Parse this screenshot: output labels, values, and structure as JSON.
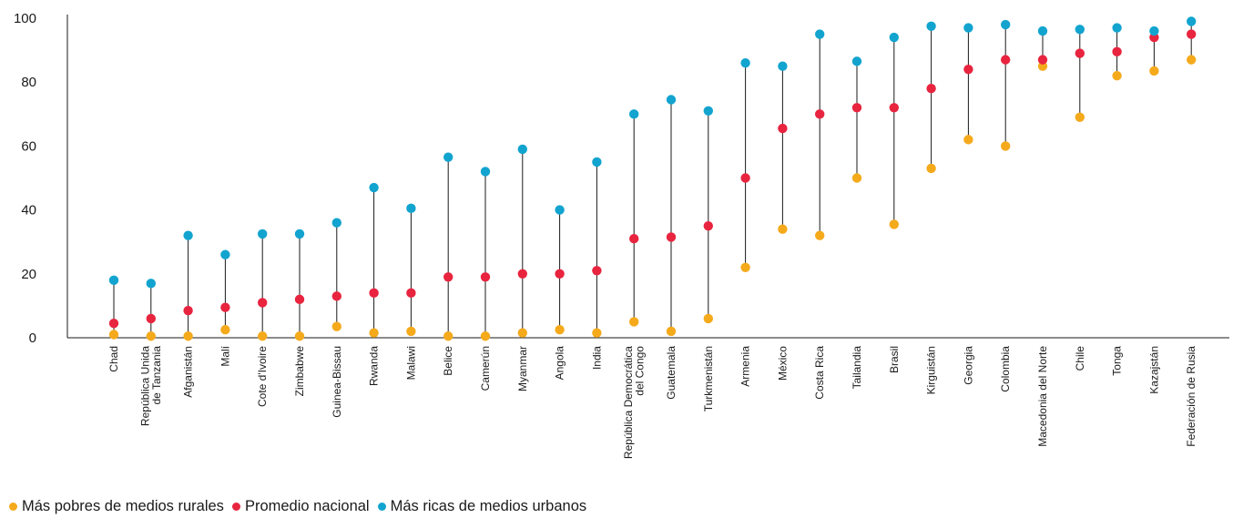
{
  "chart_data": {
    "type": "dot-range",
    "title": "",
    "xlabel": "",
    "ylabel": "",
    "ylim": [
      0,
      100
    ],
    "yticks": [
      0,
      20,
      40,
      60,
      80,
      100
    ],
    "grid": false,
    "legend_position": "bottom-left",
    "categories": [
      [
        "Chad"
      ],
      [
        "República Unida",
        "de Tanzania"
      ],
      [
        "Afganistán"
      ],
      [
        "Malí"
      ],
      [
        "Cote d'Ivoire"
      ],
      [
        "Zimbabwe"
      ],
      [
        "Guinea-Bissau"
      ],
      [
        "Rwanda"
      ],
      [
        "Malawi"
      ],
      [
        "Belice"
      ],
      [
        "Camerún"
      ],
      [
        "Myanmar"
      ],
      [
        "Angola"
      ],
      [
        "India"
      ],
      [
        "República Democrática",
        "del Congo"
      ],
      [
        "Guatemala"
      ],
      [
        "Turkmenistán"
      ],
      [
        "Armenia"
      ],
      [
        "México"
      ],
      [
        "Costa Rica"
      ],
      [
        "Tailandia"
      ],
      [
        "Brasil"
      ],
      [
        "Kirguistán"
      ],
      [
        "Georgia"
      ],
      [
        "Colombia"
      ],
      [
        "Macedonia del Norte"
      ],
      [
        "Chile"
      ],
      [
        "Tonga"
      ],
      [
        "Kazajstán"
      ],
      [
        "Federación de Rusia"
      ]
    ],
    "series": [
      {
        "name": "Más pobres de medios rurales",
        "color": "#f5aa1c",
        "values": [
          1,
          0.5,
          0.5,
          2.5,
          0.5,
          0.5,
          3.5,
          1.5,
          2,
          0.5,
          0.5,
          1.5,
          2.5,
          1.5,
          5,
          2,
          6,
          22,
          34,
          32,
          50,
          35.5,
          53,
          62,
          60,
          85,
          69,
          82,
          83.5,
          87
        ]
      },
      {
        "name": "Promedio nacional",
        "color": "#e8243f",
        "values": [
          4.5,
          6,
          8.5,
          9.5,
          11,
          12,
          13,
          14,
          14,
          19,
          19,
          20,
          20,
          21,
          31,
          31.5,
          35,
          50,
          65.5,
          70,
          72,
          72,
          78,
          84,
          87,
          87,
          89,
          89.5,
          94,
          95
        ]
      },
      {
        "name": "Más ricas de medios urbanos",
        "color": "#12a4cf",
        "values": [
          18,
          17,
          32,
          26,
          32.5,
          32.5,
          36,
          47,
          40.5,
          56.5,
          52,
          59,
          40,
          55,
          70,
          74.5,
          71,
          86,
          85,
          95,
          86.5,
          94,
          97.5,
          97,
          98,
          96,
          96.5,
          97,
          96,
          99
        ]
      }
    ]
  }
}
